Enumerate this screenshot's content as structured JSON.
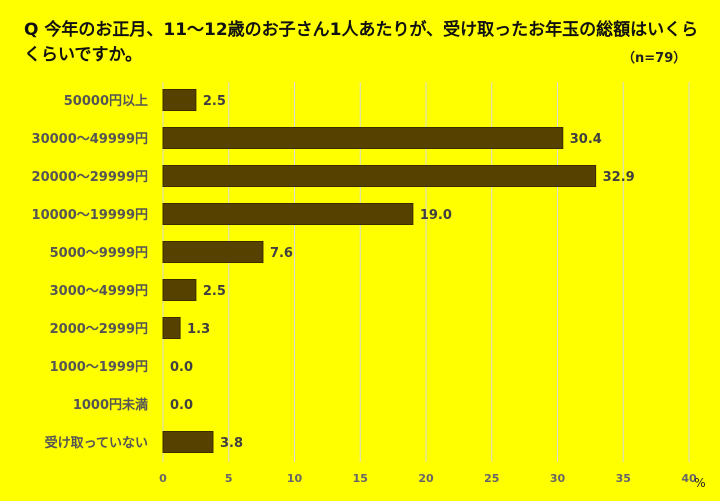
{
  "chart_data": {
    "type": "bar",
    "orientation": "horizontal",
    "title": "Q 今年のお正月、11〜12歳のお子さん1人あたりが、受け取ったお年玉の総額はいくらくらいですか。",
    "sample": "（n=79）",
    "categories": [
      "50000円以上",
      "30000〜49999円",
      "20000〜29999円",
      "10000〜19999円",
      "5000〜9999円",
      "3000〜4999円",
      "2000〜2999円",
      "1000〜1999円",
      "1000円未満",
      "受け取っていない"
    ],
    "values": [
      2.5,
      30.4,
      32.9,
      19.0,
      7.6,
      2.5,
      1.3,
      0.0,
      0.0,
      3.8
    ],
    "value_labels": [
      "2.5",
      "30.4",
      "32.9",
      "19.0",
      "7.6",
      "2.5",
      "1.3",
      "0.0",
      "0.0",
      "3.8"
    ],
    "xlim": [
      0,
      40
    ],
    "xticks": [
      "0",
      "5",
      "10",
      "15",
      "20",
      "25",
      "30",
      "35",
      "40"
    ],
    "xunit": "%",
    "grid": true,
    "colors": {
      "bar": "#574100",
      "background": "#ffff00",
      "grid": "#d9d9d9"
    }
  }
}
